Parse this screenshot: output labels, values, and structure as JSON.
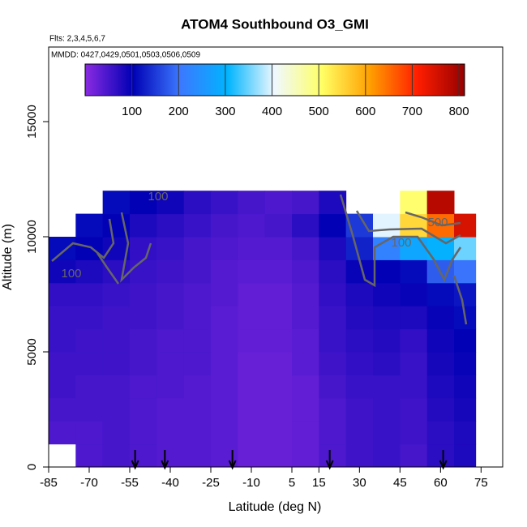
{
  "chart_data": {
    "type": "heatmap",
    "title": "ATOM4 Southbound O3_GMI",
    "flights_label": "Flts: 2,3,4,5,6,7",
    "dates_label": "MMDD: 0427,0429,0501,0503,0506,0509",
    "x_label": "Latitude (deg N)",
    "y_label": "Altitude (m)",
    "xlim": [
      -85,
      83
    ],
    "ylim": [
      0,
      18240
    ],
    "xticks": [
      -85,
      -70,
      -55,
      -40,
      -25,
      -10,
      5,
      15,
      30,
      45,
      60,
      75
    ],
    "yticks": [
      0,
      5000,
      10000,
      15000
    ],
    "x_edges": [
      -85,
      -75,
      -65,
      -55,
      -45,
      -35,
      -25,
      -15,
      -5,
      5,
      15,
      25,
      35,
      45,
      55,
      65,
      73
    ],
    "y_edges": [
      0,
      1000,
      2000,
      3000,
      4000,
      5000,
      6000,
      7000,
      8000,
      9000,
      10000,
      11000,
      12000
    ],
    "z": [
      [
        null,
        45,
        50,
        45,
        40,
        40,
        35,
        25,
        25,
        30,
        45,
        55,
        60,
        50,
        70,
        80
      ],
      [
        45,
        45,
        50,
        45,
        40,
        40,
        35,
        25,
        25,
        30,
        45,
        55,
        60,
        55,
        70,
        80
      ],
      [
        50,
        50,
        50,
        45,
        40,
        40,
        35,
        25,
        25,
        30,
        45,
        55,
        60,
        55,
        75,
        85
      ],
      [
        55,
        50,
        50,
        45,
        45,
        40,
        35,
        25,
        25,
        30,
        50,
        60,
        60,
        60,
        80,
        90
      ],
      [
        55,
        55,
        55,
        50,
        45,
        45,
        35,
        25,
        25,
        35,
        55,
        65,
        70,
        60,
        85,
        95
      ],
      [
        60,
        55,
        55,
        50,
        45,
        45,
        35,
        30,
        30,
        35,
        60,
        70,
        75,
        65,
        90,
        100
      ],
      [
        60,
        60,
        55,
        55,
        50,
        45,
        35,
        30,
        30,
        40,
        60,
        75,
        80,
        80,
        95,
        110
      ],
      [
        65,
        65,
        60,
        55,
        50,
        45,
        40,
        30,
        30,
        40,
        65,
        80,
        90,
        95,
        110,
        120
      ],
      [
        90,
        80,
        70,
        60,
        55,
        50,
        40,
        35,
        35,
        45,
        70,
        95,
        100,
        110,
        180,
        200
      ],
      [
        110,
        100,
        90,
        65,
        60,
        50,
        45,
        40,
        40,
        50,
        80,
        130,
        220,
        280,
        300,
        350
      ],
      [
        null,
        110,
        100,
        80,
        70,
        60,
        50,
        45,
        50,
        70,
        100,
        150,
        400,
        550,
        650,
        750
      ],
      [
        null,
        null,
        110,
        100,
        90,
        70,
        60,
        50,
        45,
        50,
        80,
        null,
        null,
        500,
        780,
        null
      ]
    ],
    "clim": [
      0,
      812
    ],
    "colorbar_ticks": [
      100,
      200,
      300,
      400,
      500,
      600,
      700,
      800
    ],
    "colormap": [
      "#8a2be2",
      "#0000b4",
      "#3c78ff",
      "#00b4ff",
      "#f0f8ff",
      "#ffff64",
      "#ffa000",
      "#ff1e00",
      "#960000"
    ],
    "flight_markers": [
      -53,
      -42,
      -17,
      19,
      61
    ],
    "contour_labels": [
      "100",
      "100",
      "100",
      "500"
    ]
  }
}
